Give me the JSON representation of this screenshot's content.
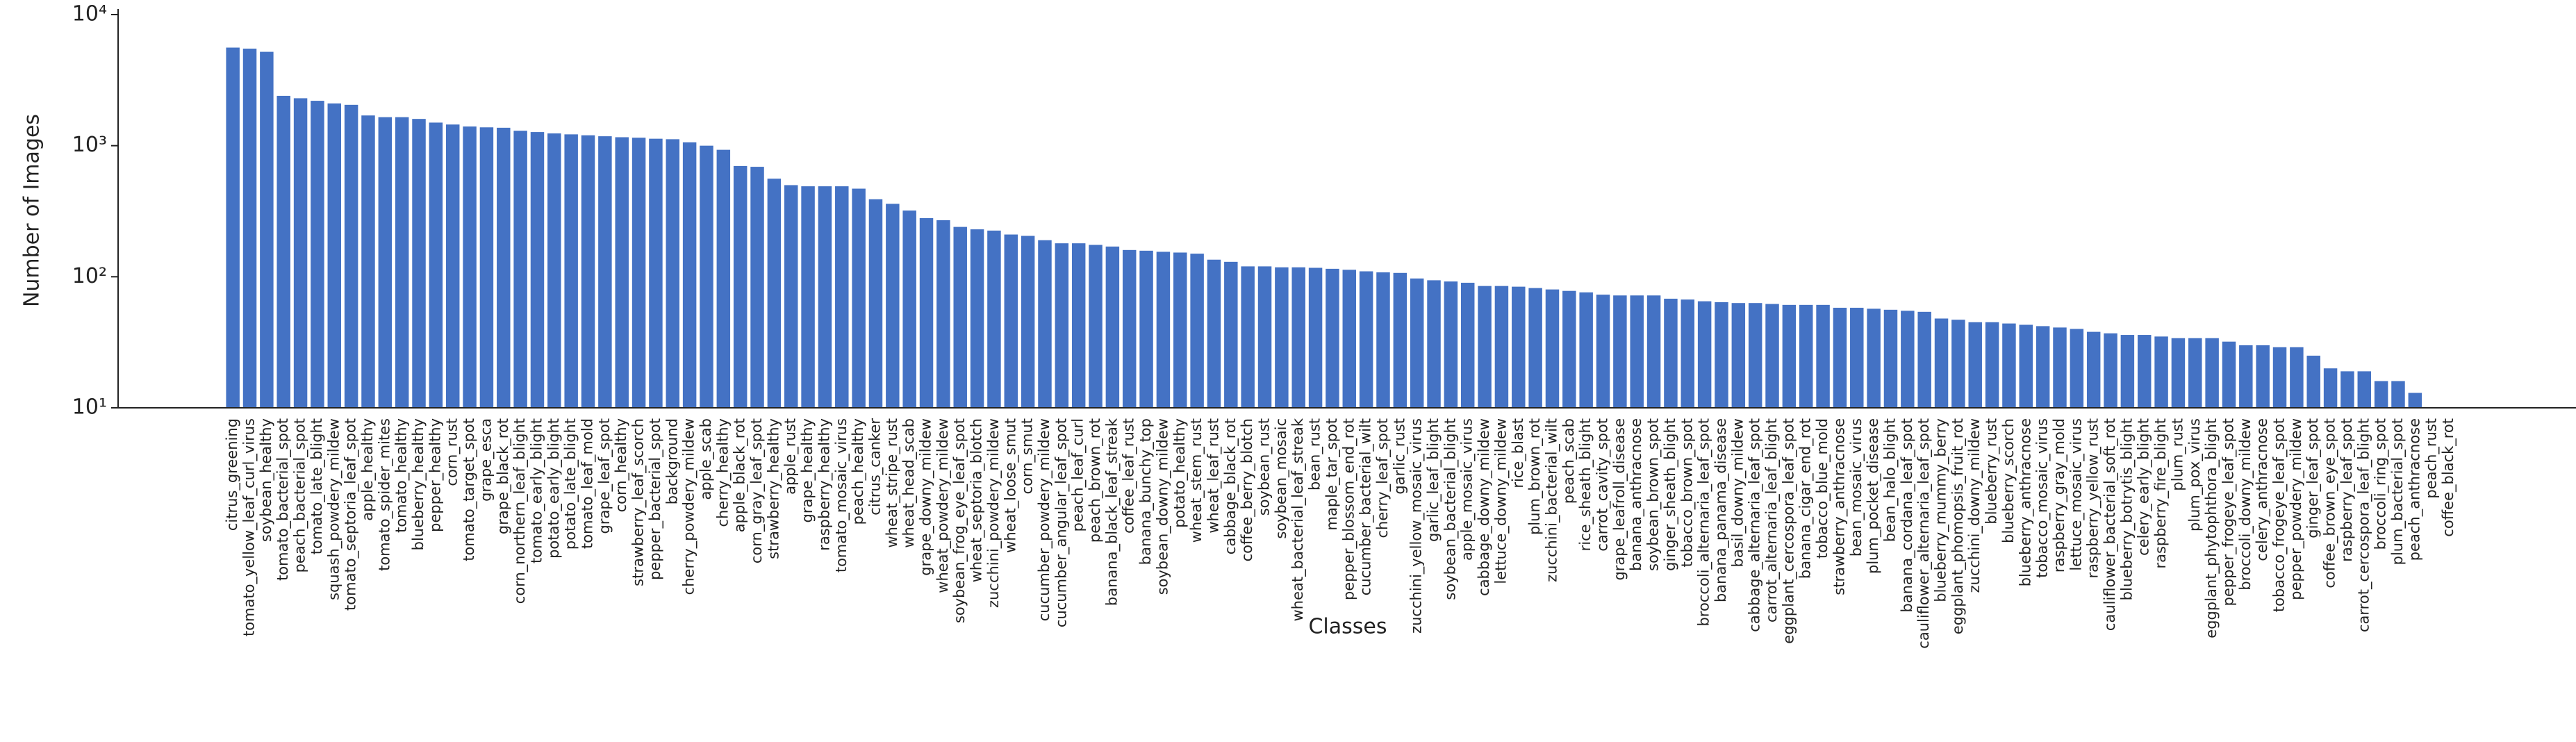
{
  "chart_data": {
    "type": "bar",
    "x_label": "Classes",
    "y_label": "Number of Images",
    "log_scale": true,
    "color": "#4472c4",
    "ylim": [
      10,
      10000
    ],
    "yticks": [
      {
        "value": 10,
        "label": "10¹"
      },
      {
        "value": 100,
        "label": "10²"
      },
      {
        "value": 1000,
        "label": "10³"
      },
      {
        "value": 10000,
        "label": "10⁴"
      }
    ],
    "categories": [
      "citrus_greening",
      "tomato_yellow_leaf_curl_virus",
      "soybean_healthy",
      "tomato_bacterial_spot",
      "peach_bacterial_spot",
      "tomato_late_blight",
      "squash_powdery_mildew",
      "tomato_septoria_leaf_spot",
      "apple_healthy",
      "tomato_spider_mites",
      "tomato_healthy",
      "blueberry_healthy",
      "pepper_healthy",
      "corn_rust",
      "tomato_target_spot",
      "grape_esca",
      "grape_black_rot",
      "corn_northern_leaf_blight",
      "tomato_early_blight",
      "potato_early_blight",
      "potato_late_blight",
      "tomato_leaf_mold",
      "grape_leaf_spot",
      "corn_healthy",
      "strawberry_leaf_scorch",
      "pepper_bacterial_spot",
      "background",
      "cherry_powdery_mildew",
      "apple_scab",
      "cherry_healthy",
      "apple_black_rot",
      "corn_gray_leaf_spot",
      "strawberry_healthy",
      "apple_rust",
      "grape_healthy",
      "raspberry_healthy",
      "tomato_mosaic_virus",
      "peach_healthy",
      "citrus_canker",
      "wheat_stripe_rust",
      "wheat_head_scab",
      "grape_downy_mildew",
      "wheat_powdery_mildew",
      "soybean_frog_eye_leaf_spot",
      "wheat_septoria_blotch",
      "zucchini_powdery_mildew",
      "wheat_loose_smut",
      "corn_smut",
      "cucumber_powdery_mildew",
      "cucumber_angular_leaf_spot",
      "peach_leaf_curl",
      "peach_brown_rot",
      "banana_black_leaf_streak",
      "coffee_leaf_rust",
      "banana_bunchy_top",
      "soybean_downy_mildew",
      "potato_healthy",
      "wheat_stem_rust",
      "wheat_leaf_rust",
      "cabbage_black_rot",
      "coffee_berry_blotch",
      "soybean_rust",
      "soybean_mosaic",
      "wheat_bacterial_leaf_streak",
      "bean_rust",
      "maple_tar_spot",
      "pepper_blossom_end_rot",
      "cucumber_bacterial_wilt",
      "cherry_leaf_spot",
      "garlic_rust",
      "zucchini_yellow_mosaic_virus",
      "garlic_leaf_blight",
      "soybean_bacterial_blight",
      "apple_mosaic_virus",
      "cabbage_downy_mildew",
      "lettuce_downy_mildew",
      "rice_blast",
      "plum_brown_rot",
      "zucchini_bacterial_wilt",
      "peach_scab",
      "rice_sheath_blight",
      "carrot_cavity_spot",
      "grape_leafroll_disease",
      "banana_anthracnose",
      "soybean_brown_spot",
      "ginger_sheath_blight",
      "tobacco_brown_spot",
      "broccoli_alternaria_leaf_spot",
      "banana_panama_disease",
      "basil_downy_mildew",
      "cabbage_alternaria_leaf_spot",
      "carrot_alternaria_leaf_blight",
      "eggplant_cercospora_leaf_spot",
      "banana_cigar_end_rot",
      "tobacco_blue_mold",
      "strawberry_anthracnose",
      "bean_mosaic_virus",
      "plum_pocket_disease",
      "bean_halo_blight",
      "banana_cordana_leaf_spot",
      "cauliflower_alternaria_leaf_spot",
      "blueberry_mummy_berry",
      "eggplant_phomopsis_fruit_rot",
      "zucchini_downy_mildew",
      "blueberry_rust",
      "blueberry_scorch",
      "blueberry_anthracnose",
      "tobacco_mosaic_virus",
      "raspberry_gray_mold",
      "lettuce_mosaic_virus",
      "raspberry_yellow_rust",
      "cauliflower_bacterial_soft_rot",
      "blueberry_botrytis_blight",
      "celery_early_blight",
      "raspberry_fire_blight",
      "plum_rust",
      "plum_pox_virus",
      "eggplant_phytophthora_blight",
      "pepper_frogeye_leaf_spot",
      "broccoli_downy_mildew",
      "celery_anthracnose",
      "tobacco_frogeye_leaf_spot",
      "pepper_powdery_mildew",
      "ginger_leaf_spot",
      "coffee_brown_eye_spot",
      "raspberry_leaf_spot",
      "carrot_cercospora_leaf_blight",
      "broccoli_ring_spot",
      "plum_bacterial_spot",
      "peach_anthracnose",
      "peach_rust",
      "coffee_black_rot"
    ],
    "values": [
      5600,
      5500,
      5200,
      2400,
      2300,
      2200,
      2100,
      2050,
      1700,
      1650,
      1650,
      1600,
      1500,
      1450,
      1400,
      1380,
      1370,
      1300,
      1270,
      1240,
      1220,
      1200,
      1180,
      1160,
      1150,
      1130,
      1120,
      1060,
      1000,
      930,
      700,
      690,
      560,
      500,
      490,
      490,
      490,
      470,
      390,
      360,
      320,
      280,
      270,
      240,
      230,
      225,
      210,
      205,
      190,
      180,
      180,
      175,
      170,
      160,
      158,
      155,
      153,
      150,
      135,
      130,
      120,
      120,
      118,
      118,
      117,
      115,
      113,
      110,
      108,
      107,
      97,
      94,
      92,
      90,
      85,
      85,
      84,
      82,
      80,
      78,
      76,
      73,
      72,
      72,
      72,
      68,
      67,
      65,
      64,
      63,
      63,
      62,
      61,
      61,
      61,
      58,
      58,
      57,
      56,
      55,
      54,
      48,
      47,
      45,
      45,
      44,
      43,
      42,
      41,
      40,
      38,
      37,
      36,
      36,
      35,
      34,
      34,
      34,
      32,
      30,
      30,
      29,
      29,
      25,
      20,
      19,
      19,
      16,
      16,
      13,
      10,
      10
    ]
  }
}
